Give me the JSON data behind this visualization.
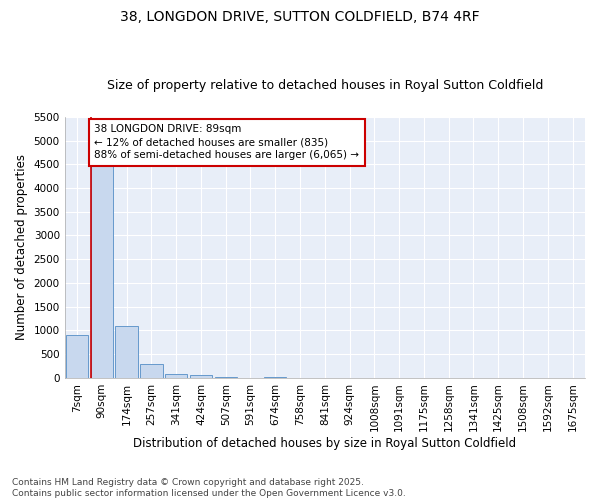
{
  "title": "38, LONGDON DRIVE, SUTTON COLDFIELD, B74 4RF",
  "subtitle": "Size of property relative to detached houses in Royal Sutton Coldfield",
  "xlabel": "Distribution of detached houses by size in Royal Sutton Coldfield",
  "ylabel": "Number of detached properties",
  "categories": [
    "7sqm",
    "90sqm",
    "174sqm",
    "257sqm",
    "341sqm",
    "424sqm",
    "507sqm",
    "591sqm",
    "674sqm",
    "758sqm",
    "841sqm",
    "924sqm",
    "1008sqm",
    "1091sqm",
    "1175sqm",
    "1258sqm",
    "1341sqm",
    "1425sqm",
    "1508sqm",
    "1592sqm",
    "1675sqm"
  ],
  "values": [
    900,
    4600,
    1100,
    300,
    85,
    60,
    20,
    0,
    20,
    0,
    0,
    0,
    0,
    0,
    0,
    0,
    0,
    0,
    0,
    0,
    0
  ],
  "bar_color": "#c8d8ee",
  "bar_edgecolor": "#6699cc",
  "annotation_text": "38 LONGDON DRIVE: 89sqm\n← 12% of detached houses are smaller (835)\n88% of semi-detached houses are larger (6,065) →",
  "annotation_box_color": "#ffffff",
  "annotation_border_color": "#cc0000",
  "ylim": [
    0,
    5500
  ],
  "yticks": [
    0,
    500,
    1000,
    1500,
    2000,
    2500,
    3000,
    3500,
    4000,
    4500,
    5000,
    5500
  ],
  "vline_color": "#cc0000",
  "vline_bar_index": 1,
  "background_color": "#e8eef8",
  "grid_color": "#ffffff",
  "footer": "Contains HM Land Registry data © Crown copyright and database right 2025.\nContains public sector information licensed under the Open Government Licence v3.0.",
  "title_fontsize": 10,
  "subtitle_fontsize": 9,
  "xlabel_fontsize": 8.5,
  "ylabel_fontsize": 8.5,
  "tick_fontsize": 7.5,
  "footer_fontsize": 6.5,
  "annotation_fontsize": 7.5
}
